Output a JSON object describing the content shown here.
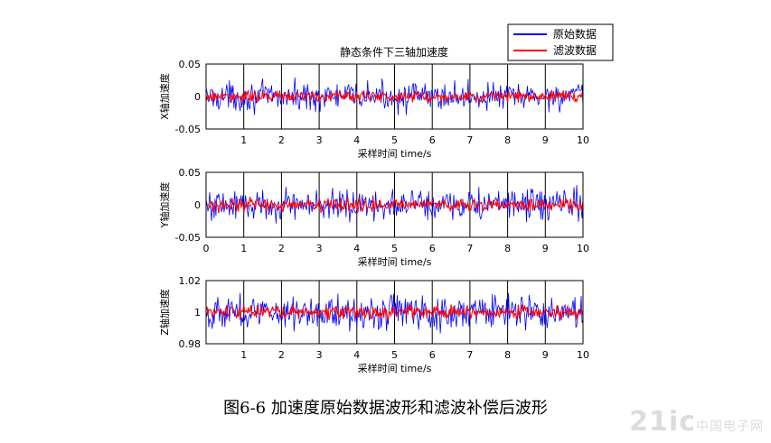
{
  "figure": {
    "title": "静态条件下三轴加速度",
    "caption": "图6-6  加速度原始数据波形和滤波补偿后波形",
    "watermark": "21ic",
    "watermark_sub": "中国电子网",
    "legend": {
      "placement": "top-right",
      "entries": [
        "原始数据",
        "滤波数据"
      ]
    },
    "colors": {
      "raw": "#0000ff",
      "filtered": "#ff0000",
      "axis": "#000000",
      "grid": "#000000"
    }
  },
  "chart_data": [
    {
      "type": "line",
      "title": "静态条件下三轴加速度",
      "xlabel": "采样时间 time/s",
      "ylabel": "X轴加速度",
      "xlim": [
        0,
        10
      ],
      "ylim": [
        -0.05,
        0.05
      ],
      "xticks": [
        "1",
        "2",
        "3",
        "4",
        "5",
        "6",
        "7",
        "8",
        "9",
        "10"
      ],
      "yticks": [
        "0.05",
        "0",
        "-0.05"
      ],
      "grid": "vertical",
      "series": [
        {
          "name": "原始数据",
          "center": 0.0,
          "amplitude": 0.02,
          "pattern": "noise"
        },
        {
          "name": "滤波数据",
          "center": 0.0,
          "amplitude": 0.008,
          "pattern": "noise"
        }
      ]
    },
    {
      "type": "line",
      "title": "",
      "xlabel": "采样时间 time/s",
      "ylabel": "Y轴加速度",
      "xlim": [
        0,
        10
      ],
      "ylim": [
        -0.05,
        0.05
      ],
      "xticks": [
        "0",
        "1",
        "2",
        "3",
        "4",
        "5",
        "6",
        "7",
        "8",
        "9",
        "10"
      ],
      "yticks": [
        "0.05",
        "0",
        "-0.05"
      ],
      "grid": "vertical",
      "series": [
        {
          "name": "原始数据",
          "center": 0.0,
          "amplitude": 0.022,
          "pattern": "noise"
        },
        {
          "name": "滤波数据",
          "center": 0.0,
          "amplitude": 0.009,
          "pattern": "noise"
        }
      ]
    },
    {
      "type": "line",
      "title": "",
      "xlabel": "采样时间 time/s",
      "ylabel": "Z轴加速度",
      "xlim": [
        0,
        10
      ],
      "ylim": [
        0.98,
        1.02
      ],
      "xticks": [
        "1",
        "2",
        "3",
        "4",
        "5",
        "6",
        "7",
        "8",
        "9",
        "10"
      ],
      "yticks": [
        "1.02",
        "1",
        "0.98"
      ],
      "grid": "vertical",
      "series": [
        {
          "name": "原始数据",
          "center": 1.0,
          "amplitude": 0.01,
          "pattern": "noise"
        },
        {
          "name": "滤波数据",
          "center": 1.0,
          "amplitude": 0.004,
          "pattern": "noise"
        }
      ]
    }
  ]
}
